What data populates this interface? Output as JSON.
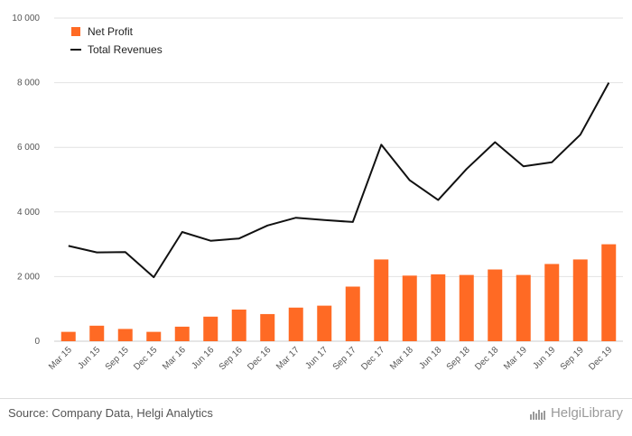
{
  "chart_data": {
    "type": "bar+line",
    "categories": [
      "Mar 15",
      "Jun 15",
      "Sep 15",
      "Dec 15",
      "Mar 16",
      "Jun 16",
      "Sep 16",
      "Dec 16",
      "Mar 17",
      "Jun 17",
      "Sep 17",
      "Dec 17",
      "Mar 18",
      "Jun 18",
      "Sep 18",
      "Dec 18",
      "Mar 19",
      "Jun 19",
      "Sep 19",
      "Dec 19"
    ],
    "series": [
      {
        "name": "Net Profit",
        "type": "bar",
        "color": "#ff6a24",
        "values": [
          290,
          480,
          380,
          290,
          450,
          760,
          980,
          840,
          1040,
          1100,
          1690,
          2530,
          2030,
          2070,
          2050,
          2220,
          2050,
          2390,
          2530,
          3000
        ]
      },
      {
        "name": "Total Revenues",
        "type": "line",
        "color": "#111111",
        "values": [
          2950,
          2750,
          2760,
          1980,
          3380,
          3110,
          3180,
          3580,
          3820,
          3750,
          3690,
          6080,
          4980,
          4370,
          5330,
          6160,
          5410,
          5540,
          6390,
          8000
        ]
      }
    ],
    "ylim": [
      0,
      10000
    ],
    "yticks": [
      0,
      2000,
      4000,
      6000,
      8000,
      10000
    ],
    "ytick_labels": [
      "0",
      "2 000",
      "4 000",
      "6 000",
      "8 000",
      "10 000"
    ],
    "grid": true,
    "legend_position": "top-left"
  },
  "footer": {
    "source": "Source: Company Data, Helgi Analytics",
    "logo_text": "HelgiLibrary"
  }
}
